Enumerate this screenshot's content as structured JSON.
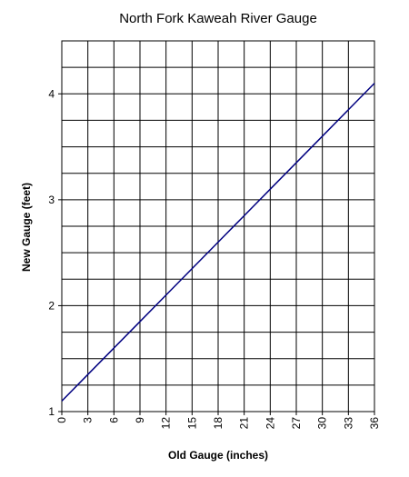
{
  "chart_data": {
    "type": "line",
    "title": "North Fork Kaweah River Gauge",
    "x_label": "Old Gauge (inches)",
    "y_label": "New Gauge (feet)",
    "x": [
      0,
      3,
      6,
      9,
      12,
      15,
      18,
      21,
      24,
      27,
      30,
      33,
      36
    ],
    "series": [
      {
        "color": "#000080",
        "values": [
          1.1,
          1.35,
          1.6,
          1.85,
          2.1,
          2.35,
          2.6,
          2.85,
          3.1,
          3.35,
          3.6,
          3.85,
          4.1
        ]
      }
    ],
    "xlim": [
      0,
      36
    ],
    "xticks": [
      0,
      3,
      6,
      9,
      12,
      15,
      18,
      21,
      24,
      27,
      30,
      33,
      36
    ],
    "ylim": [
      1,
      4.5
    ],
    "yticks": [
      1,
      2,
      3,
      4
    ],
    "y_minor_grid": [
      1.25,
      1.5,
      1.75,
      2.25,
      2.5,
      2.75,
      3.25,
      3.5,
      3.75,
      4.25,
      4.5
    ],
    "grid": true
  }
}
